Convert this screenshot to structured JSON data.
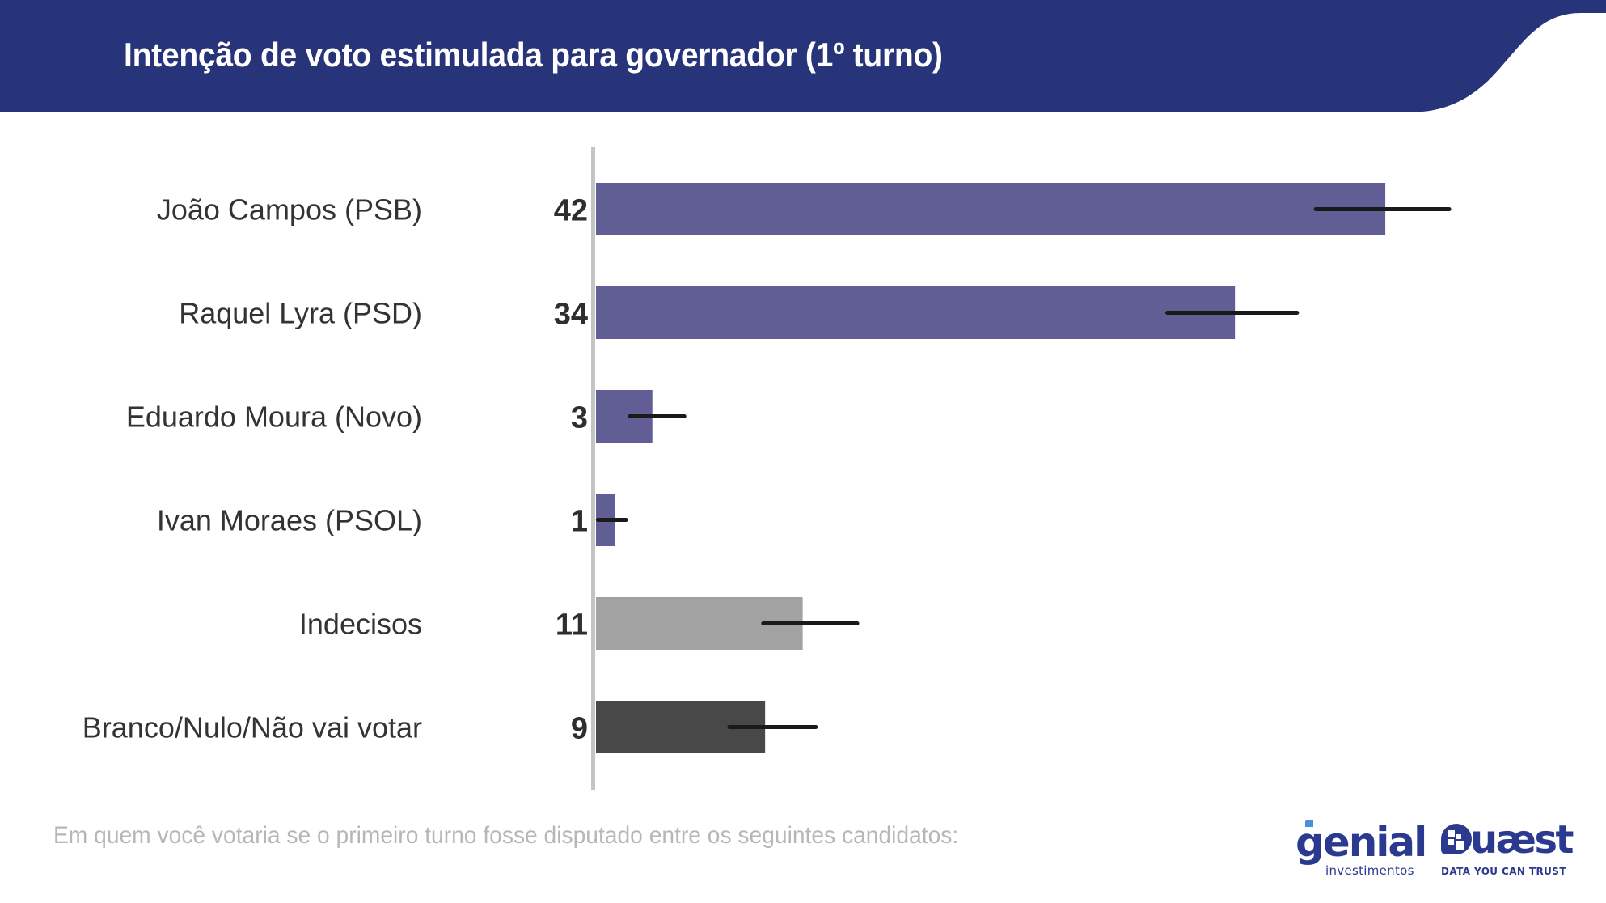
{
  "header": {
    "title": "Intenção de voto estimulada para governador (1º turno)",
    "band_color": "#283479"
  },
  "footnote": "Em quem você votaria se o primeiro turno fosse disputado entre os seguintes candidatos:",
  "logos": {
    "genial": {
      "word": "genial",
      "sub": "investimentos",
      "color": "#2b3a8f",
      "accent": "#4a8fd9"
    },
    "quaest": {
      "word": "uæst",
      "sub": "DATA YOU CAN TRUST",
      "color": "#2b3a8f"
    }
  },
  "chart_data": {
    "type": "bar",
    "orientation": "horizontal",
    "title": "Intenção de voto estimulada para governador (1º turno)",
    "xlabel": "",
    "ylabel": "",
    "xlim": [
      0,
      50
    ],
    "grid": false,
    "legend": "none",
    "categories": [
      "João Campos (PSB)",
      "Raquel Lyra (PSD)",
      "Eduardo Moura (Novo)",
      "Ivan Moraes (PSOL)",
      "Indecisos",
      "Branco/Nulo/Não vai votar"
    ],
    "values": [
      42,
      34,
      3,
      1,
      11,
      9
    ],
    "value_labels": [
      "42",
      "34",
      "3",
      "1",
      "11",
      "9"
    ],
    "error_ranges": [
      [
        38.3,
        45.4
      ],
      [
        30.4,
        37.3
      ],
      [
        1.8,
        4.7
      ],
      [
        0.1,
        1.6
      ],
      [
        8.9,
        13.9
      ],
      [
        7.1,
        11.7
      ]
    ],
    "colors": [
      "#605e94",
      "#605e94",
      "#605e94",
      "#605e94",
      "#a2a2a2",
      "#484848"
    ],
    "axis_color": "#c4c4c4",
    "error_color": "#1a1a1a"
  }
}
